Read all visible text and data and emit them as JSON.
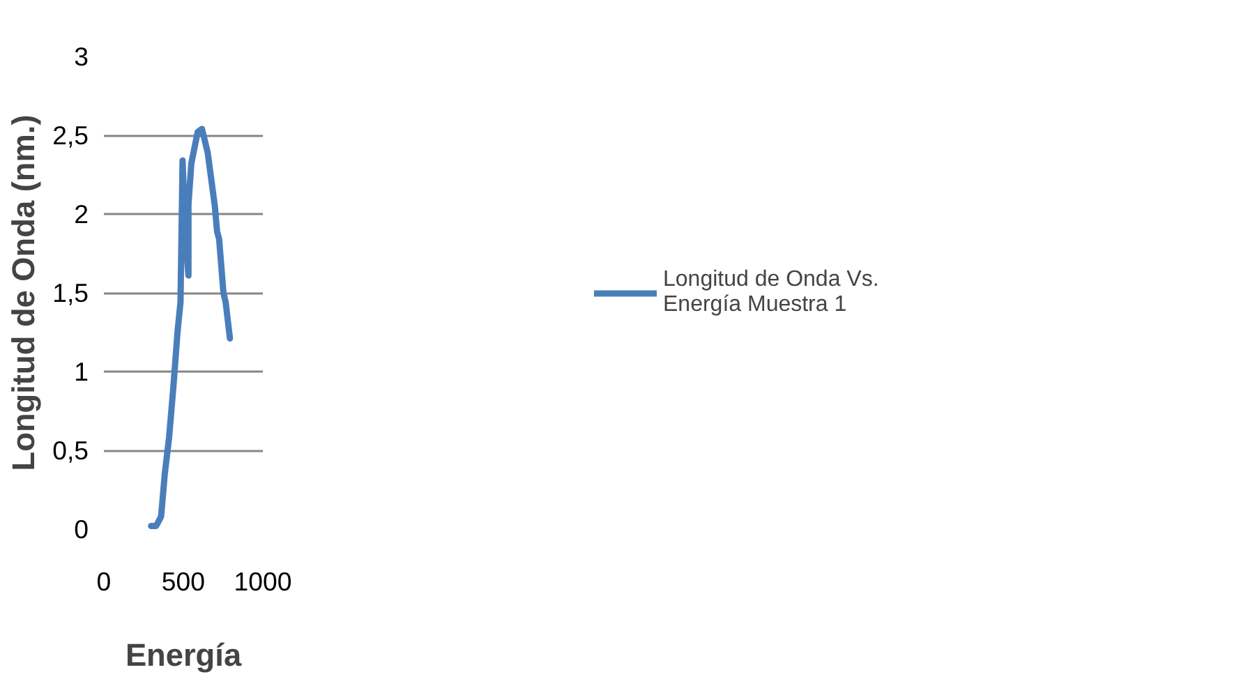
{
  "chart_data": {
    "type": "line",
    "xlabel": "Energía",
    "ylabel": "Longitud de Onda (nm.)",
    "xlim": [
      0,
      1000
    ],
    "xticks": [
      0,
      500,
      1000
    ],
    "ylim": [
      0,
      3
    ],
    "yticks": [
      0,
      {
        "value": 0.5,
        "label": "0,5"
      },
      1,
      {
        "value": 1.5,
        "label": "1,5"
      },
      2,
      {
        "value": 2.5,
        "label": "2,5"
      },
      3
    ],
    "grid": "y",
    "legend": "right",
    "marker": "none",
    "line_style": "solid",
    "series": [
      {
        "name": "Longitud de Onda Vs. Energía Muestra 1",
        "color": "#4a7ebb",
        "x": [
          297,
          329,
          360,
          383,
          410,
          437,
          464,
          482,
          495,
          514,
          532,
          532,
          550,
          590,
          617,
          653,
          698,
          712,
          725,
          752,
          766,
          793
        ],
        "values": [
          0.02,
          0.02,
          0.08,
          0.35,
          0.58,
          0.9,
          1.26,
          1.44,
          2.34,
          1.84,
          1.61,
          2.06,
          2.32,
          2.52,
          2.54,
          2.39,
          2.05,
          1.89,
          1.84,
          1.5,
          1.44,
          1.21
        ]
      }
    ]
  }
}
